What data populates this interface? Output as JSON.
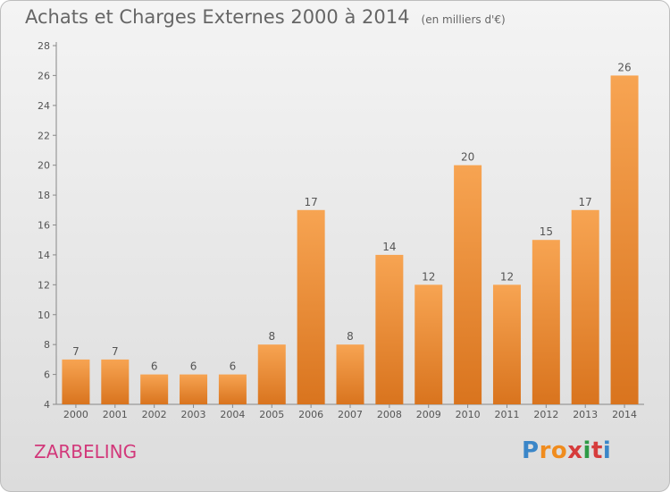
{
  "title": "Achats et Charges Externes 2000 à 2014",
  "unit": "(en milliers d'€)",
  "commune": "ZARBELING",
  "logo": {
    "letters": [
      "P",
      "r",
      "o",
      "x",
      "i",
      "t",
      "i"
    ],
    "colors": [
      "#3a86c8",
      "#f08c1e",
      "#f08c1e",
      "#d63c3c",
      "#2e9a46",
      "#d63c3c",
      "#3a86c8"
    ]
  },
  "colors": {
    "bar_top": "#f7a452",
    "bar_bottom": "#d9741e",
    "text": "#555555"
  },
  "chart_data": {
    "type": "bar",
    "categories": [
      "2000",
      "2001",
      "2002",
      "2003",
      "2004",
      "2005",
      "2006",
      "2007",
      "2008",
      "2009",
      "2010",
      "2011",
      "2012",
      "2013",
      "2014"
    ],
    "values": [
      7,
      7,
      6,
      6,
      6,
      8,
      17,
      8,
      14,
      12,
      20,
      12,
      15,
      17,
      26
    ],
    "ylim": [
      4,
      28
    ],
    "yticks": [
      4,
      6,
      8,
      10,
      12,
      14,
      16,
      18,
      20,
      22,
      24,
      26,
      28
    ],
    "data_labels": true,
    "grid": false,
    "title": "Achats et Charges Externes 2000 à 2014",
    "xlabel": "",
    "ylabel": ""
  }
}
